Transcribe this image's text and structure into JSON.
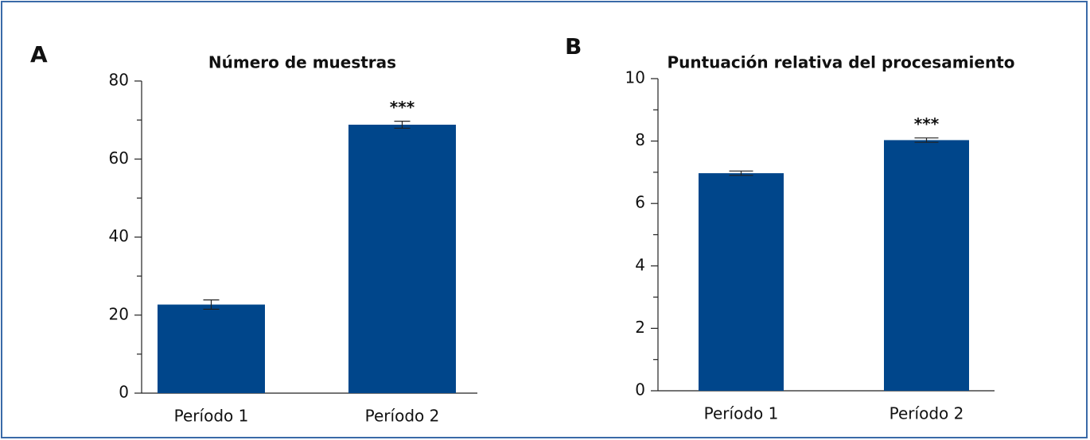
{
  "chart_data": [
    {
      "type": "bar",
      "panel": "A",
      "title": "Número de muestras",
      "categories": [
        "Período 1",
        "Período 2"
      ],
      "values": [
        22.7,
        68.8
      ],
      "errors": [
        1.2,
        0.9
      ],
      "annotations": [
        null,
        "***"
      ],
      "color": "#00468b",
      "ylim": [
        0,
        80
      ],
      "yticks": [
        0,
        20,
        40,
        60,
        80
      ],
      "minor_yticks": [
        10,
        30,
        50,
        70
      ]
    },
    {
      "type": "bar",
      "panel": "B",
      "title": "Puntuación relativa del procesamiento",
      "categories": [
        "Período 1",
        "Período 2"
      ],
      "values": [
        6.97,
        8.03
      ],
      "errors": [
        0.07,
        0.07
      ],
      "annotations": [
        null,
        "***"
      ],
      "color": "#00468b",
      "ylim": [
        0,
        10
      ],
      "yticks": [
        0,
        2,
        4,
        6,
        8,
        10
      ],
      "minor_yticks": [
        1,
        3,
        5,
        7,
        9
      ]
    }
  ]
}
